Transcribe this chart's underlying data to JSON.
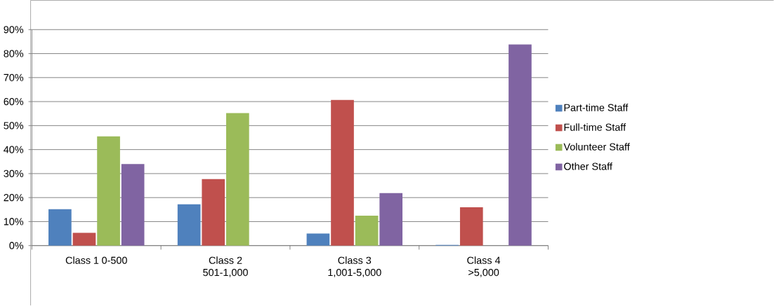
{
  "chart_data": {
    "type": "bar",
    "categories": [
      "Class 1 0-500",
      "Class 2 501-1,000",
      "Class 3 1,001-5,000",
      "Class 4 >5,000"
    ],
    "series": [
      {
        "name": "Part-time Staff",
        "color": "#4f81bd",
        "values": [
          15.2,
          17.2,
          5.0,
          0.3
        ]
      },
      {
        "name": "Full-time Staff",
        "color": "#c0504d",
        "values": [
          5.3,
          27.7,
          60.7,
          16.0
        ]
      },
      {
        "name": "Volunteer Staff",
        "color": "#9bbb59",
        "values": [
          45.5,
          55.2,
          12.5,
          0
        ]
      },
      {
        "name": "Other Staff",
        "color": "#8064a2",
        "values": [
          34.0,
          0,
          21.9,
          83.8
        ]
      }
    ],
    "ylim": [
      0,
      90
    ],
    "yticks": [
      {
        "value": 0,
        "label": "0%"
      },
      {
        "value": 10,
        "label": "10%"
      },
      {
        "value": 20,
        "label": "20%"
      },
      {
        "value": 30,
        "label": "30%"
      },
      {
        "value": 40,
        "label": "40%"
      },
      {
        "value": 50,
        "label": "50%"
      },
      {
        "value": 60,
        "label": "60%"
      },
      {
        "value": 70,
        "label": "70%"
      },
      {
        "value": 80,
        "label": "80%"
      },
      {
        "value": 90,
        "label": "90%"
      }
    ],
    "grid": "y",
    "legend": "right"
  }
}
